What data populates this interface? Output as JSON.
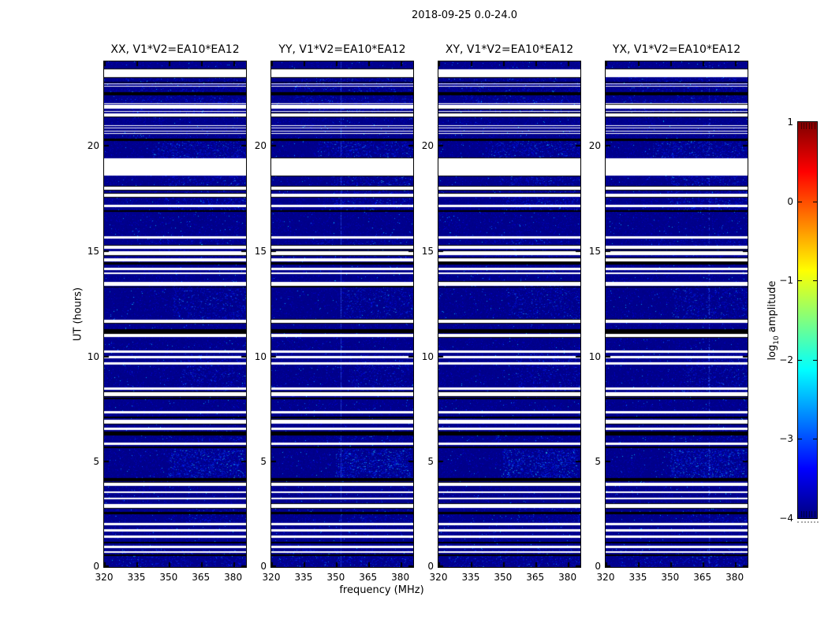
{
  "chart_data": {
    "type": "heatmap",
    "title": "2018-09-25 0.0-24.0",
    "panels": [
      {
        "title": "XX, V1*V2=EA10*EA12"
      },
      {
        "title": "YY, V1*V2=EA10*EA12"
      },
      {
        "title": "XY, V1*V2=EA10*EA12"
      },
      {
        "title": "YX, V1*V2=EA10*EA12"
      }
    ],
    "xlabel": "frequency (MHz)",
    "ylabel": "UT (hours)",
    "x_ticks": [
      320,
      335,
      350,
      365,
      380
    ],
    "x_range": [
      320,
      386
    ],
    "y_ticks": [
      0,
      5,
      10,
      15,
      20
    ],
    "y_range": [
      0,
      24
    ],
    "grid": false,
    "colorbar": {
      "label_prefix": "log",
      "label_sub": "10",
      "label_suffix": " amplitude",
      "ticks": [
        "1",
        "0",
        "−1",
        "−2",
        "−3",
        "−4"
      ],
      "tick_values": [
        1,
        0,
        -1,
        -2,
        -3,
        -4
      ],
      "range": [
        -4,
        1
      ],
      "colormap": "jet",
      "colors": [
        "#000080",
        "#0000ff",
        "#00ffff",
        "#ffff00",
        "#ff0000",
        "#800000"
      ]
    },
    "base_color": "#000084",
    "flagged_rows_ut": [
      [
        0.67,
        0.74
      ],
      [
        0.9,
        1.0
      ],
      [
        1.4,
        1.51
      ],
      [
        1.7,
        1.8
      ],
      [
        2.0,
        2.1
      ],
      [
        2.8,
        2.99
      ],
      [
        3.22,
        3.28
      ],
      [
        3.5,
        3.6
      ],
      [
        3.85,
        4.0
      ],
      [
        5.8,
        5.9
      ],
      [
        6.5,
        6.6
      ],
      [
        6.8,
        7.0
      ],
      [
        7.3,
        7.41
      ],
      [
        8.1,
        8.29
      ],
      [
        8.4,
        8.52
      ],
      [
        9.6,
        9.72
      ],
      [
        9.9,
        10.01
      ],
      [
        10.16,
        10.27
      ],
      [
        10.93,
        11.08
      ],
      [
        11.6,
        11.72
      ],
      [
        13.34,
        13.53
      ],
      [
        13.9,
        13.98
      ],
      [
        14.08,
        14.19
      ],
      [
        14.49,
        14.64
      ],
      [
        14.82,
        15.0
      ],
      [
        15.1,
        15.25
      ],
      [
        15.6,
        15.71
      ],
      [
        17.08,
        17.19
      ],
      [
        17.56,
        17.71
      ],
      [
        17.92,
        18.04
      ],
      [
        18.58,
        19.4
      ],
      [
        20.55,
        20.59
      ],
      [
        20.68,
        20.72
      ],
      [
        20.82,
        20.86
      ],
      [
        20.95,
        20.99
      ],
      [
        21.4,
        21.52
      ],
      [
        21.62,
        21.66
      ],
      [
        21.75,
        21.93
      ],
      [
        21.97,
        22.01
      ],
      [
        22.8,
        22.84
      ],
      [
        22.92,
        22.96
      ],
      [
        23.25,
        23.62
      ]
    ],
    "dropout_rows_ut": [
      [
        0.52,
        0.58
      ],
      [
        1.12,
        1.18
      ],
      [
        2.52,
        2.6
      ],
      [
        4.08,
        4.22
      ],
      [
        5.66,
        5.72
      ],
      [
        6.26,
        6.44
      ],
      [
        7.08,
        7.14
      ],
      [
        7.98,
        8.04
      ],
      [
        11.1,
        11.28
      ],
      [
        13.26,
        13.32
      ],
      [
        14.36,
        14.46
      ],
      [
        16.86,
        16.94
      ],
      [
        20.22,
        20.34
      ],
      [
        22.38,
        22.56
      ],
      [
        22.98,
        23.04
      ]
    ],
    "bright_patches": [
      {
        "ut": [
          4.2,
          5.6
        ],
        "mhz": [
          350,
          385
        ],
        "strength": 0.95
      },
      {
        "ut": [
          19.4,
          20.3
        ],
        "mhz": [
          342,
          386
        ],
        "strength": 0.6
      },
      {
        "ut": [
          16.9,
          18.55
        ],
        "mhz": [
          348,
          386
        ],
        "strength": 0.5
      },
      {
        "ut": [
          11.6,
          13.4
        ],
        "mhz": [
          352,
          386
        ],
        "strength": 0.4
      },
      {
        "ut": [
          8.2,
          10.1
        ],
        "mhz": [
          356,
          386
        ],
        "strength": 0.35
      },
      {
        "ut": [
          21.3,
          23.3
        ],
        "mhz": [
          330,
          386
        ],
        "strength": 0.3
      },
      {
        "ut": [
          0.0,
          0.8
        ],
        "mhz": [
          325,
          386
        ],
        "strength": 0.35
      },
      {
        "ut": [
          6.0,
          6.6
        ],
        "mhz": [
          345,
          386
        ],
        "strength": 0.3
      },
      {
        "ut": [
          2.1,
          2.8
        ],
        "mhz": [
          355,
          386
        ],
        "strength": 0.25
      },
      {
        "ut": [
          14.6,
          15.6
        ],
        "mhz": [
          340,
          386
        ],
        "strength": 0.25
      }
    ],
    "vertical_lines": [
      {
        "panel": 1,
        "mhz": 352.6,
        "density": 0.85,
        "blotchy": false
      },
      {
        "panel": 3,
        "mhz": 368.4,
        "density": 0.5,
        "blotchy": true
      }
    ]
  }
}
